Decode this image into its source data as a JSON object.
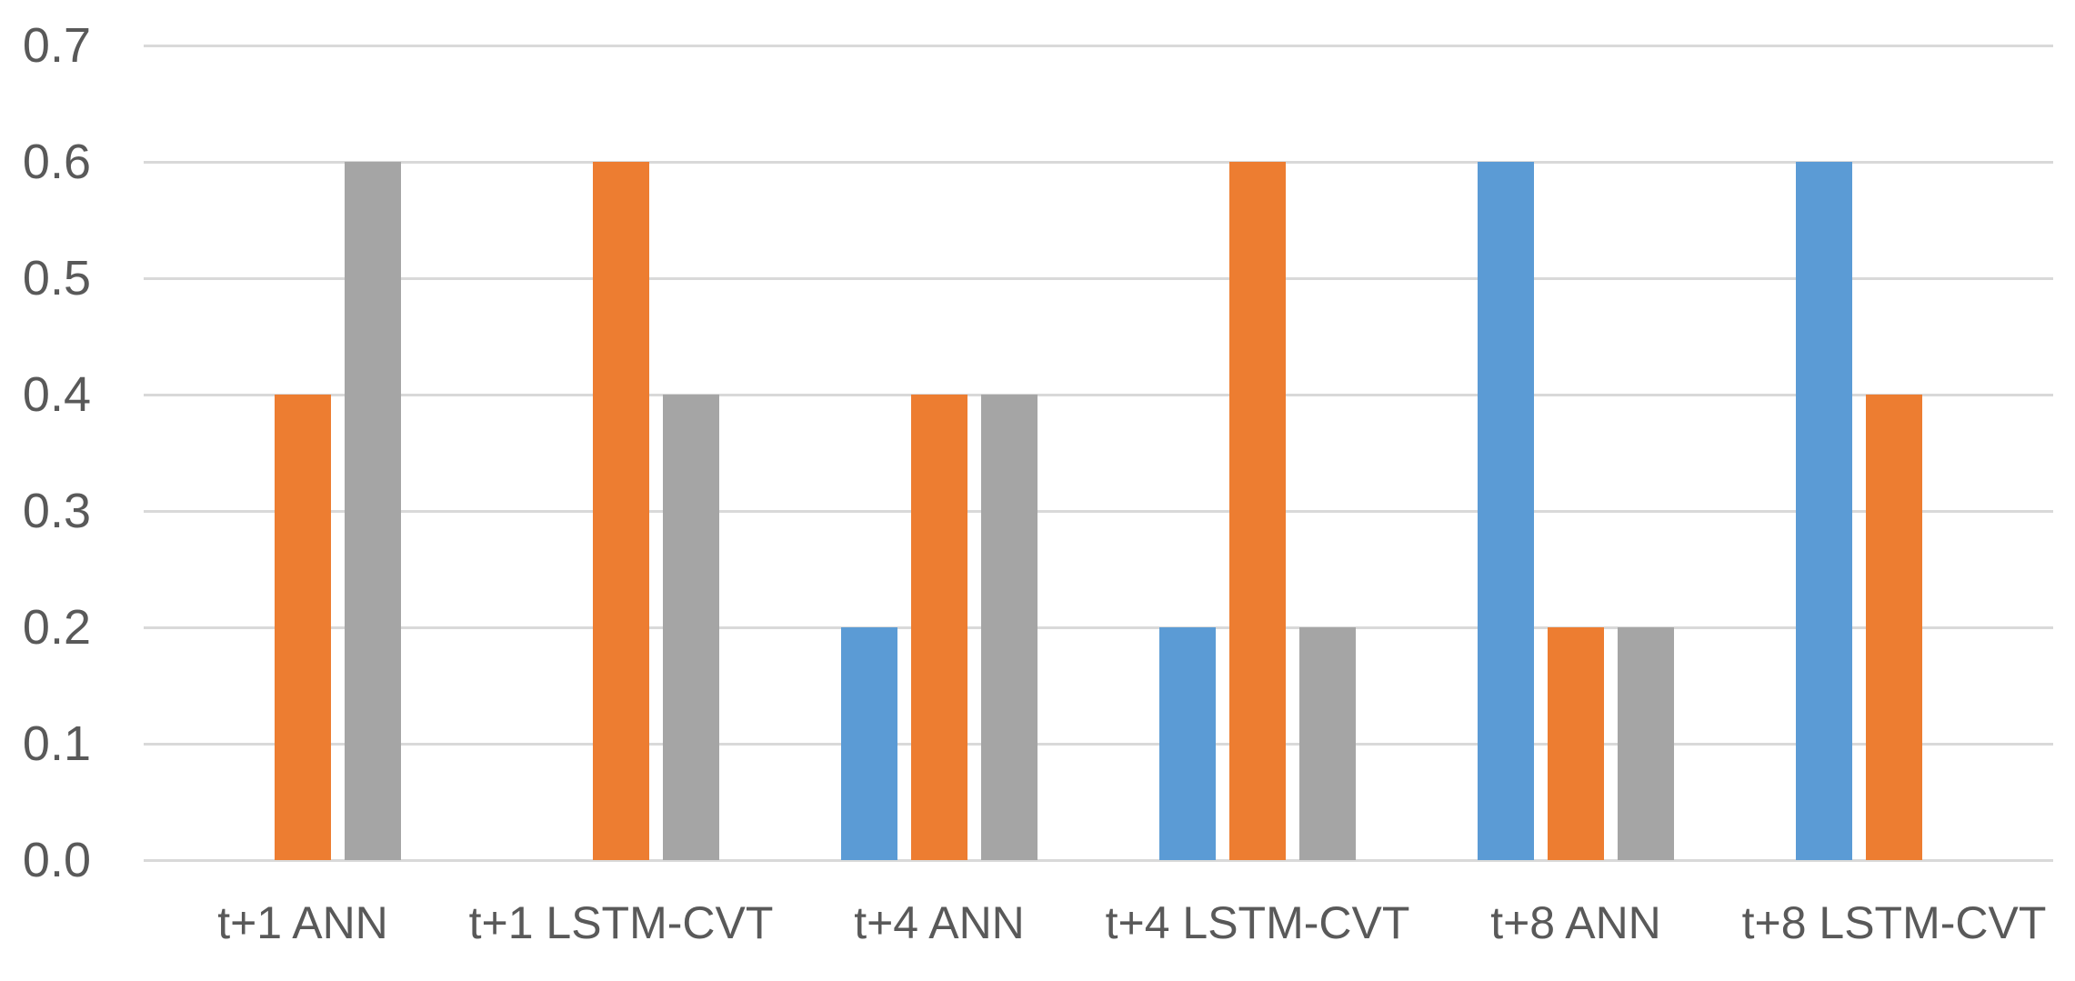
{
  "chart_data": {
    "type": "bar",
    "title": "",
    "xlabel": "",
    "ylabel": "",
    "categories": [
      "t+1 ANN",
      "t+1 LSTM-CVT",
      "t+4 ANN",
      "t+4 LSTM-CVT",
      "t+8 ANN",
      "t+8 LSTM-CVT"
    ],
    "series": [
      {
        "name": "blue",
        "color": "#5B9BD5",
        "values": [
          0,
          0,
          0.2,
          0.2,
          0.6,
          0.6
        ]
      },
      {
        "name": "orange",
        "color": "#ED7D31",
        "values": [
          0.4,
          0.6,
          0.4,
          0.6,
          0.2,
          0.4
        ]
      },
      {
        "name": "gray",
        "color": "#A5A5A5",
        "values": [
          0.6,
          0.4,
          0.4,
          0.2,
          0.2,
          0
        ]
      }
    ],
    "ylim": [
      0,
      0.7
    ],
    "ytick_step": 0.1,
    "ytick_labels": [
      "0.0",
      "0.1",
      "0.2",
      "0.3",
      "0.4",
      "0.5",
      "0.6",
      "0.7"
    ],
    "grid": true,
    "legend": "none"
  },
  "style": {
    "background": "#FFFFFF",
    "gridline_color": "#D9D9D9",
    "axis_text_color": "#595959"
  }
}
